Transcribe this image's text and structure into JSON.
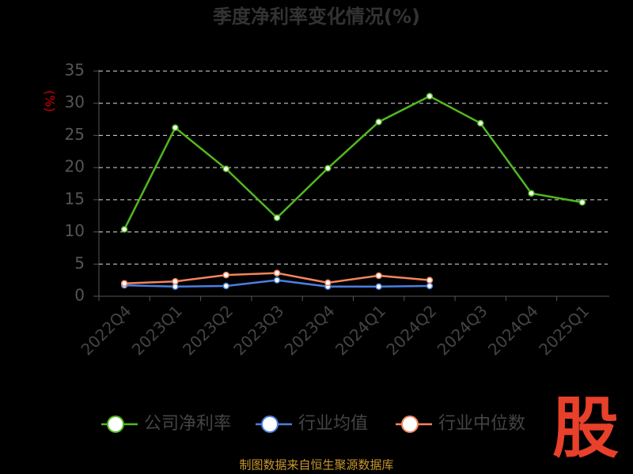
{
  "chart_data": {
    "type": "line",
    "title": "季度净利率变化情况(%)",
    "y_label": "(%)",
    "categories": [
      "2022Q4",
      "2023Q1",
      "2023Q2",
      "2023Q3",
      "2023Q4",
      "2024Q1",
      "2024Q2",
      "2024Q3",
      "2024Q4",
      "2025Q1"
    ],
    "series": [
      {
        "name": "公司净利率",
        "color": "#52b81f",
        "values": [
          10.4,
          26.2,
          19.8,
          12.2,
          19.9,
          27.1,
          31.1,
          26.9,
          16.0,
          14.6
        ]
      },
      {
        "name": "行业均值",
        "color": "#4a7fe0",
        "values": [
          1.7,
          1.5,
          1.6,
          2.5,
          1.5,
          1.5,
          1.6,
          null,
          null,
          null
        ]
      },
      {
        "name": "行业中位数",
        "color": "#f4865b",
        "values": [
          2.0,
          2.3,
          3.3,
          3.6,
          2.1,
          3.2,
          2.5,
          null,
          null,
          null
        ]
      }
    ],
    "ylim": [
      0,
      35
    ],
    "yticks": [
      0,
      5,
      10,
      15,
      20,
      25,
      30,
      35
    ],
    "grid": true,
    "legend": "bottom"
  },
  "logo": "股",
  "footer": "制图数据来自恒生聚源数据库"
}
